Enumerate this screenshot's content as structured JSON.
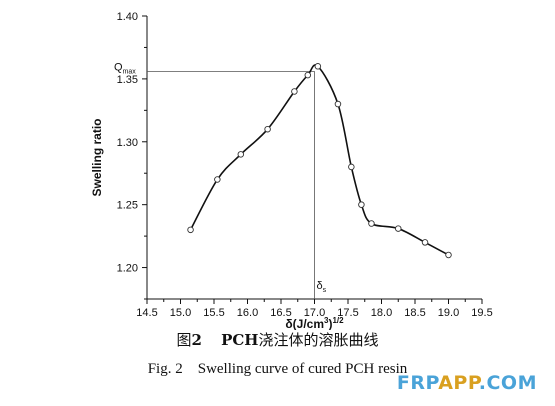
{
  "chart_data": {
    "type": "line",
    "title": "",
    "xlabel": "δ(J/cm³)^1/2",
    "xlabel_main": "δ(J/cm",
    "xlabel_sup1": "3",
    "xlabel_close": ")",
    "xlabel_sup2": "1/2",
    "ylabel": "Swelling ratio",
    "xlim": [
      14.5,
      19.5
    ],
    "ylim": [
      1.175,
      1.4
    ],
    "x_ticks": [
      "14.5",
      "15.0",
      "15.5",
      "16.0",
      "16.5",
      "17.0",
      "17.5",
      "18.0",
      "18.5",
      "19.0",
      "19.5"
    ],
    "y_ticks": [
      "1.20",
      "1.25",
      "1.30",
      "1.35",
      "1.40"
    ],
    "grid": false,
    "series": [
      {
        "points": [
          [
            15.15,
            1.23
          ],
          [
            15.55,
            1.27
          ],
          [
            15.9,
            1.29
          ],
          [
            16.3,
            1.31
          ],
          [
            16.7,
            1.34
          ],
          [
            16.9,
            1.353
          ],
          [
            17.05,
            1.36
          ],
          [
            17.35,
            1.33
          ],
          [
            17.55,
            1.28
          ],
          [
            17.7,
            1.25
          ],
          [
            17.85,
            1.235
          ],
          [
            18.25,
            1.231
          ],
          [
            18.65,
            1.22
          ],
          [
            19.0,
            1.21
          ]
        ]
      }
    ],
    "annotations": {
      "qmax_label": "Q",
      "qmax_sub": "max",
      "qmax_value": 1.356,
      "delta_label": "δ",
      "delta_sub": "s",
      "delta_value": 17.0
    }
  },
  "caption": {
    "cn_prefix": "图",
    "cn_num": "2",
    "cn_bold": "PCH",
    "cn_rest": "浇注体的溶胀曲线",
    "en": "Fig. 2    Swelling curve of cured PCH resin"
  },
  "watermark": {
    "part1": "FRP",
    "part2": "APP",
    "part3": ".COM",
    "color1": "#4aa3d8",
    "color2": "#d9a020",
    "color3": "#4aa3d8"
  }
}
